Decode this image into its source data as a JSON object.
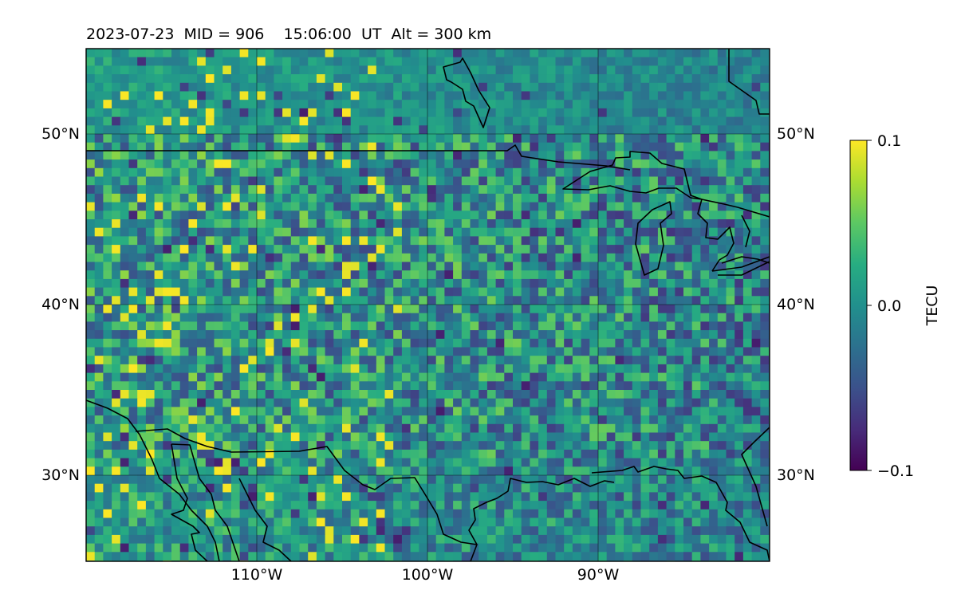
{
  "header": {
    "title": "2023-07-23  MID = 906    15:06:00  UT  Alt = 300 km"
  },
  "chart_data": {
    "type": "heatmap",
    "map_extent": {
      "lon": [
        -120,
        -80
      ],
      "lat": [
        25,
        55
      ]
    },
    "lat_ticks": [
      {
        "value": 50,
        "label": "50°N"
      },
      {
        "value": 40,
        "label": "40°N"
      },
      {
        "value": 30,
        "label": "30°N"
      }
    ],
    "lon_ticks": [
      {
        "value": -110,
        "label": "110°W"
      },
      {
        "value": -100,
        "label": "100°W"
      },
      {
        "value": -90,
        "label": "90°W"
      }
    ],
    "gridlines_lon": [
      -110,
      -100,
      -90
    ],
    "gridlines_lat": [
      50,
      40,
      30
    ],
    "grid": true,
    "colormap": "viridis",
    "colorbar": {
      "label": "TECU",
      "min": -0.1,
      "max": 0.1,
      "ticks": [
        {
          "value": 0.1,
          "label": "0.1"
        },
        {
          "value": 0.0,
          "label": "0.0"
        },
        {
          "value": -0.1,
          "label": "−0.1"
        }
      ],
      "placement": "right"
    }
  }
}
